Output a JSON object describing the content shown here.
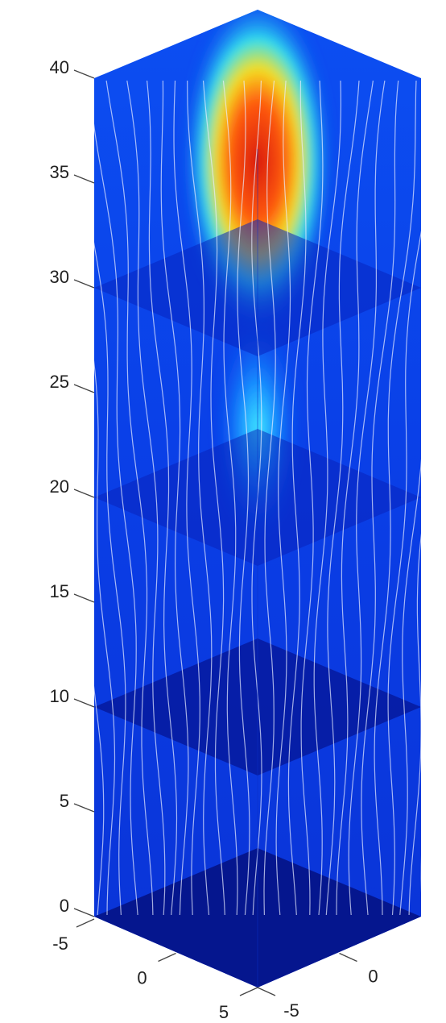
{
  "chart_data": {
    "type": "streamslice3d",
    "zlim": [
      0,
      40
    ],
    "zticks": [
      0,
      5,
      10,
      15,
      20,
      25,
      30,
      35,
      40
    ],
    "xlim": [
      -5,
      5
    ],
    "xticks": [
      -5,
      0,
      5
    ],
    "ylim": [
      -5,
      5
    ],
    "yticks": [
      -5,
      0
    ]
  }
}
